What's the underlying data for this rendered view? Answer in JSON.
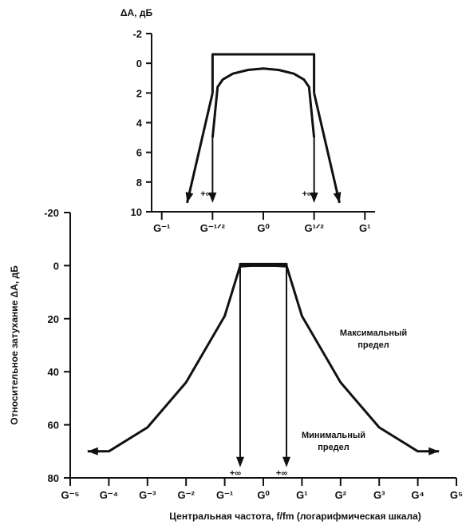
{
  "chart_data": [
    {
      "type": "line",
      "title": "",
      "ylabel": "ΔA, дБ",
      "xlabel": "",
      "y_ticks": [
        "-2",
        "0",
        "2",
        "4",
        "6",
        "8",
        "10"
      ],
      "ylim": [
        -2,
        10
      ],
      "x_ticks": [
        "G⁻¹",
        "G⁻¹ᐟ²",
        "G⁰",
        "G¹ᐟ²",
        "G¹"
      ],
      "x_tick_values": [
        -1,
        -0.5,
        0,
        0.5,
        1
      ],
      "xlim": [
        -1.1,
        1.1
      ],
      "series": [
        {
          "role": "min-max-envelope",
          "points": [
            [
              -0.5,
              2
            ],
            [
              -0.5,
              -0.6
            ],
            [
              0.5,
              -0.6
            ],
            [
              0.5,
              2
            ]
          ],
          "style": "outline"
        },
        {
          "role": "inner-curve",
          "points": [
            [
              -0.5,
              5.0
            ],
            [
              -0.45,
              1.6
            ],
            [
              -0.4,
              1.1
            ],
            [
              -0.3,
              0.7
            ],
            [
              -0.15,
              0.45
            ],
            [
              0,
              0.35
            ],
            [
              0.15,
              0.45
            ],
            [
              0.3,
              0.7
            ],
            [
              0.4,
              1.1
            ],
            [
              0.45,
              1.6
            ],
            [
              0.5,
              5.0
            ]
          ]
        },
        {
          "role": "outer-slope-left",
          "points": [
            [
              -0.5,
              2
            ],
            [
              -0.75,
              9.4
            ]
          ]
        },
        {
          "role": "outer-slope-right",
          "points": [
            [
              0.5,
              2
            ],
            [
              0.75,
              9.4
            ]
          ]
        }
      ],
      "arrows": [
        {
          "x": -0.5,
          "from": 5.0,
          "to": 9.4,
          "label": "+∞"
        },
        {
          "x": 0.5,
          "from": 5.0,
          "to": 9.4,
          "label": "+∞"
        }
      ]
    },
    {
      "type": "line",
      "title": "",
      "ylabel": "Относительное затухание ΔA, дБ",
      "xlabel": "Центральная частота, f/fm (логарифмическая шкала)",
      "y_ticks": [
        "-20",
        "0",
        "20",
        "40",
        "60",
        "80"
      ],
      "ylim": [
        -20,
        80
      ],
      "x_ticks": [
        "G⁻⁵",
        "G⁻⁴",
        "G⁻³",
        "G⁻²",
        "G⁻¹",
        "G⁰",
        "G¹",
        "G²",
        "G³",
        "G⁴",
        "G⁵"
      ],
      "x_tick_values": [
        -5,
        -4,
        -3,
        -2,
        -1,
        0,
        1,
        2,
        3,
        4,
        5
      ],
      "xlim": [
        -5,
        5
      ],
      "series": [
        {
          "name": "Максимальный предел",
          "points": [
            [
              -4.55,
              70
            ],
            [
              -4,
              70
            ],
            [
              -3,
              61
            ],
            [
              -2,
              44
            ],
            [
              -1,
              19
            ],
            [
              -0.6,
              0
            ],
            [
              0.6,
              0
            ],
            [
              1,
              19
            ],
            [
              2,
              44
            ],
            [
              3,
              61
            ],
            [
              4,
              70
            ],
            [
              4.55,
              70
            ]
          ]
        },
        {
          "name": "Минимальный предел",
          "points": [
            [
              -0.6,
              0
            ],
            [
              -0.6,
              -0.6
            ],
            [
              0.6,
              -0.6
            ],
            [
              0.6,
              0
            ]
          ],
          "style": "outline"
        },
        {
          "role": "inner-curve",
          "points": [
            [
              -0.6,
              0.3
            ],
            [
              -0.3,
              0
            ],
            [
              0,
              -0.1
            ],
            [
              0.3,
              0
            ],
            [
              0.6,
              0.3
            ]
          ]
        }
      ],
      "arrows": [
        {
          "x": -0.6,
          "from": 0,
          "to": 76,
          "label": "+∞"
        },
        {
          "x": 0.6,
          "from": 0,
          "to": 76,
          "label": "+∞"
        }
      ],
      "annotations": [
        {
          "text_lines": [
            "Максимальный",
            "предел"
          ]
        },
        {
          "text_lines": [
            "Минимальный",
            "предел"
          ]
        }
      ]
    }
  ]
}
